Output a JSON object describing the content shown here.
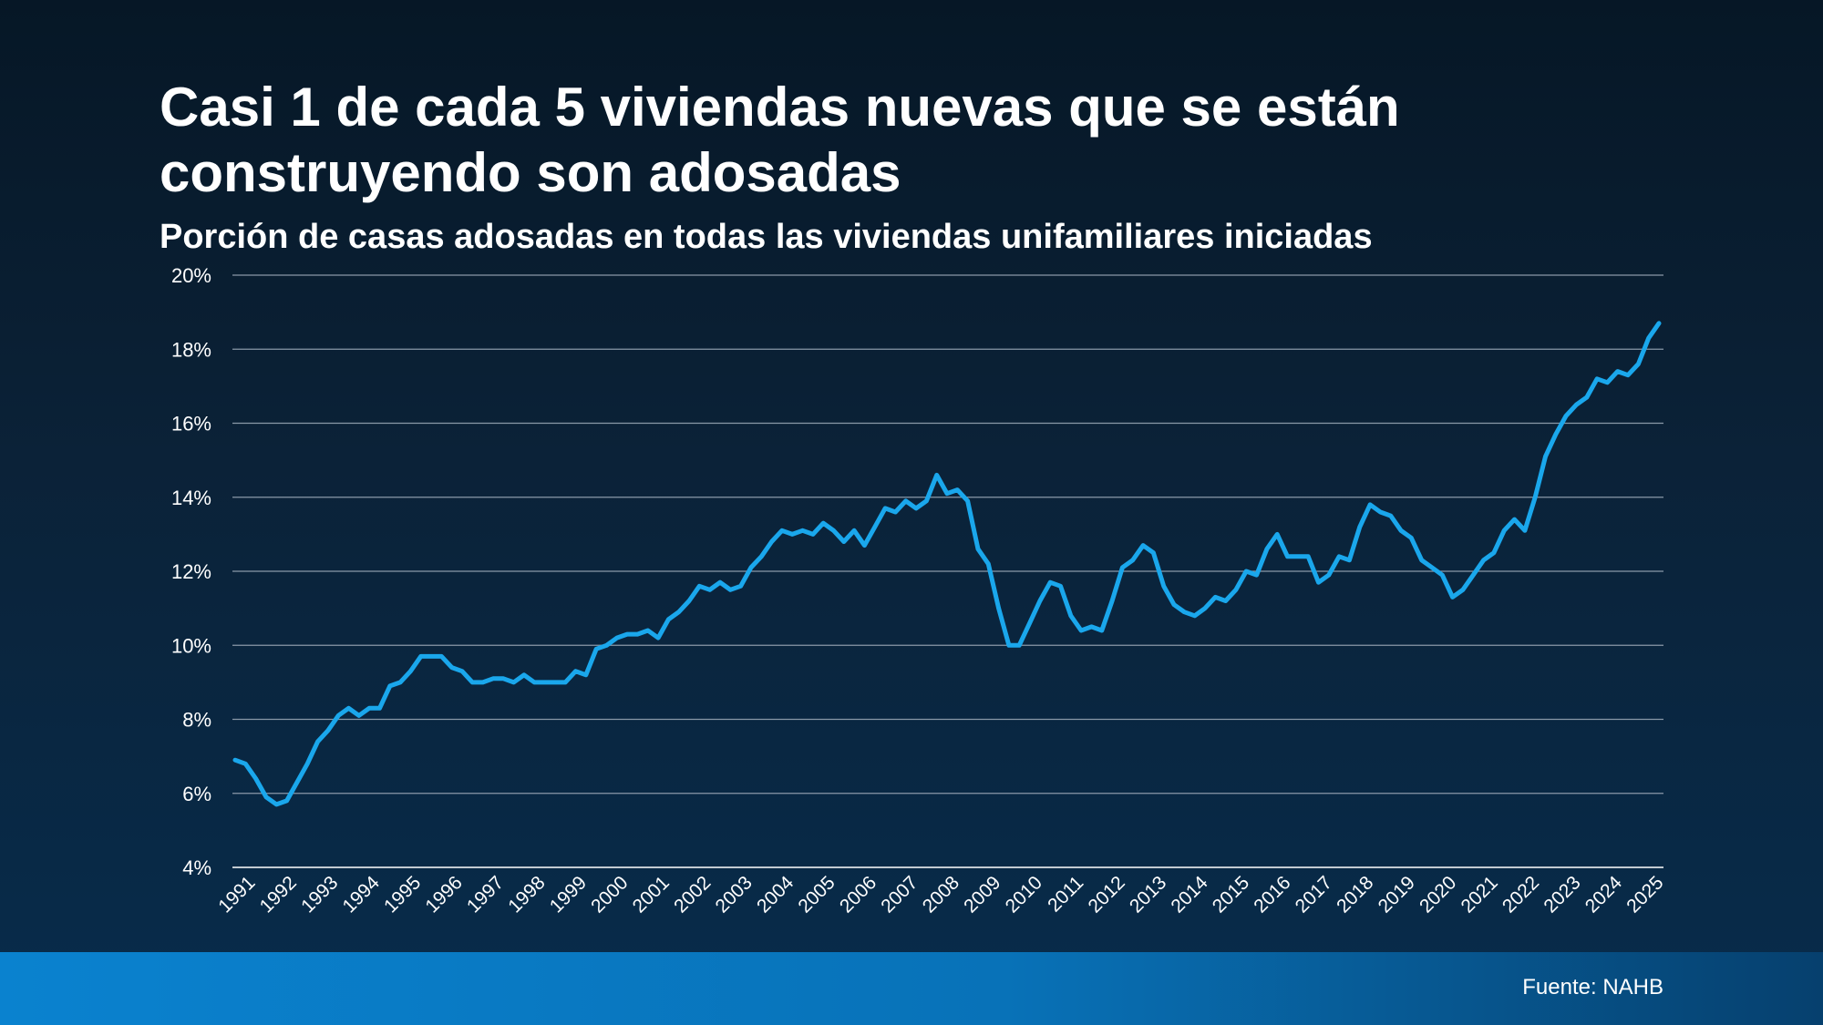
{
  "slide": {
    "source": "Fuente: NAHB"
  },
  "colors": {
    "line": "#1aa7ec",
    "grid": "#8a99a8",
    "text": "#ffffff"
  },
  "chart_data": {
    "type": "line",
    "title": "Casi 1 de cada 5 viviendas nuevas que se están construyendo son adosadas",
    "subtitle": "Porción de casas adosadas en todas las viviendas unifamiliares iniciadas",
    "xlabel": "",
    "ylabel": "",
    "ylim": [
      4,
      20
    ],
    "y_ticks": [
      "4%",
      "6%",
      "8%",
      "10%",
      "12%",
      "14%",
      "16%",
      "18%",
      "20%"
    ],
    "x_ticks": [
      "1991",
      "1992",
      "1993",
      "1994",
      "1995",
      "1996",
      "1997",
      "1998",
      "1999",
      "2000",
      "2001",
      "2002",
      "2003",
      "2004",
      "2005",
      "2006",
      "2007",
      "2008",
      "2009",
      "2010",
      "2011",
      "2012",
      "2013",
      "2014",
      "2015",
      "2016",
      "2017",
      "2018",
      "2019",
      "2020",
      "2021",
      "2022",
      "2023",
      "2024",
      "2025"
    ],
    "grid": true,
    "legend": "none",
    "series": [
      {
        "values": [
          6.9,
          6.8,
          6.4,
          5.9,
          5.7,
          5.8,
          6.3,
          6.8,
          7.4,
          7.7,
          8.1,
          8.3,
          8.1,
          8.3,
          8.3,
          8.9,
          9.0,
          9.3,
          9.7,
          9.7,
          9.7,
          9.4,
          9.3,
          9.0,
          9.0,
          9.1,
          9.1,
          9.0,
          9.2,
          9.0,
          9.0,
          9.0,
          9.0,
          9.3,
          9.2,
          9.9,
          10.0,
          10.2,
          10.3,
          10.3,
          10.4,
          10.2,
          10.7,
          10.9,
          11.2,
          11.6,
          11.5,
          11.7,
          11.5,
          11.6,
          12.1,
          12.4,
          12.8,
          13.1,
          13.0,
          13.1,
          13.0,
          13.3,
          13.1,
          12.8,
          13.1,
          12.7,
          13.2,
          13.7,
          13.6,
          13.9,
          13.7,
          13.9,
          14.6,
          14.1,
          14.2,
          13.9,
          12.6,
          12.2,
          11.0,
          10.0,
          10.0,
          10.6,
          11.2,
          11.7,
          11.6,
          10.8,
          10.4,
          10.5,
          10.4,
          11.2,
          12.1,
          12.3,
          12.7,
          12.5,
          11.6,
          11.1,
          10.9,
          10.8,
          11.0,
          11.3,
          11.2,
          11.5,
          12.0,
          11.9,
          12.6,
          13.0,
          12.4,
          12.4,
          12.4,
          11.7,
          11.9,
          12.4,
          12.3,
          13.2,
          13.8,
          13.6,
          13.5,
          13.1,
          12.9,
          12.3,
          12.1,
          11.9,
          11.3,
          11.5,
          11.9,
          12.3,
          12.5,
          13.1,
          13.4,
          13.1,
          14.0,
          15.1,
          15.7,
          16.2,
          16.5,
          16.7,
          17.2,
          17.1,
          17.4,
          17.3,
          17.6,
          18.3,
          18.7
        ]
      }
    ]
  }
}
